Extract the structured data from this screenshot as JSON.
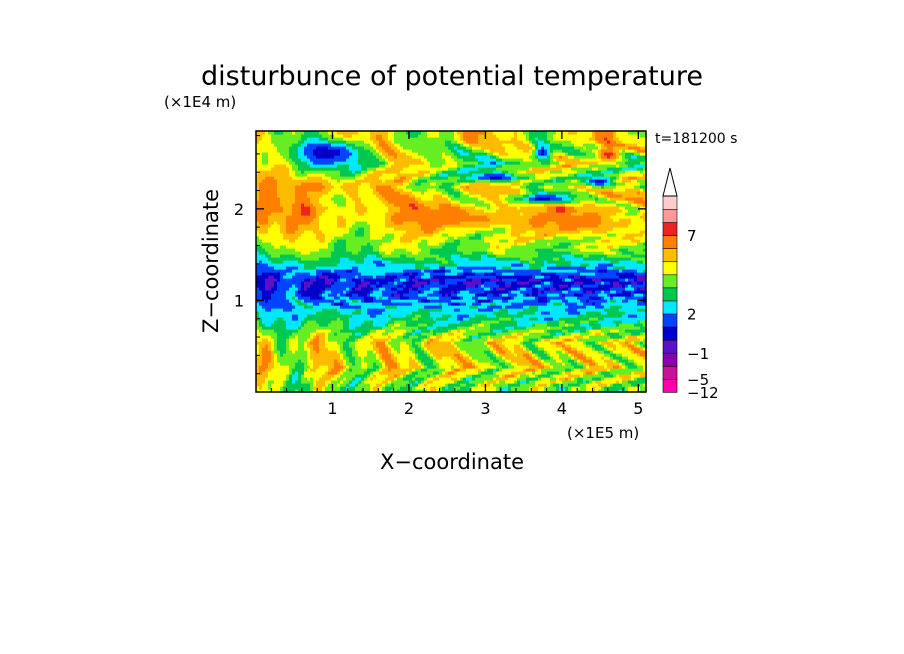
{
  "chart_data": {
    "type": "heatmap",
    "title": "disturbunce of potential temperature",
    "xlabel": "X−coordinate",
    "ylabel": "Z−coordinate",
    "x_unit": "(×1E5 m)",
    "y_unit": "(×1E4 m)",
    "time_label": "t=181200 s",
    "xlim": [
      0,
      5.1
    ],
    "ylim": [
      0,
      2.85
    ],
    "x_ticks": [
      "1",
      "2",
      "3",
      "4",
      "5"
    ],
    "y_ticks": [
      "1",
      "2"
    ],
    "colorbar_labels": [
      "7",
      "2",
      "−1",
      "−5",
      "−12"
    ],
    "colorbar_colors": [
      "#ff00aa",
      "#cc1199",
      "#8a00b0",
      "#5a10c8",
      "#0000cc",
      "#0044ff",
      "#00e8ff",
      "#00c850",
      "#66ee22",
      "#ffff00",
      "#ffbb00",
      "#ff8000",
      "#ee2222",
      "#ff9999",
      "#ffcccc"
    ],
    "bands": [
      {
        "z": 0.05,
        "level": 8,
        "amp": 1.2,
        "freq": 9.0
      },
      {
        "z": 0.28,
        "level": 9,
        "amp": 1.4,
        "freq": 7.0
      },
      {
        "z": 0.55,
        "level": 9,
        "amp": 1.3,
        "freq": 8.0
      },
      {
        "z": 0.75,
        "level": 7,
        "amp": 0.8,
        "freq": 6.0
      },
      {
        "z": 0.9,
        "level": 6,
        "amp": 0.6,
        "freq": 5.0
      },
      {
        "z": 1.05,
        "level": 5,
        "amp": 0.9,
        "freq": 11.0
      },
      {
        "z": 1.22,
        "level": 4,
        "amp": 0.9,
        "freq": 9.0
      },
      {
        "z": 1.38,
        "level": 6,
        "amp": 0.6,
        "freq": 4.0
      },
      {
        "z": 1.55,
        "level": 8,
        "amp": 0.7,
        "freq": 5.0
      },
      {
        "z": 1.75,
        "level": 9,
        "amp": 1.0,
        "freq": 4.0
      },
      {
        "z": 2.0,
        "level": 10,
        "amp": 1.2,
        "freq": 3.5
      },
      {
        "z": 2.25,
        "level": 9,
        "amp": 1.4,
        "freq": 4.5
      },
      {
        "z": 2.5,
        "level": 8,
        "amp": 1.5,
        "freq": 3.0
      },
      {
        "z": 2.75,
        "level": 9,
        "amp": 1.4,
        "freq": 4.0
      }
    ],
    "features": [
      {
        "x": 0.95,
        "z": 2.62,
        "rx": 0.45,
        "rz": 0.14,
        "level": 4
      },
      {
        "x": 3.15,
        "z": 2.35,
        "rx": 0.35,
        "rz": 0.05,
        "level": 4
      },
      {
        "x": 3.75,
        "z": 2.12,
        "rx": 0.4,
        "rz": 0.06,
        "level": 4
      },
      {
        "x": 4.5,
        "z": 2.3,
        "rx": 0.2,
        "rz": 0.06,
        "level": 4
      },
      {
        "x": 3.75,
        "z": 2.62,
        "rx": 0.12,
        "rz": 0.08,
        "level": 4
      },
      {
        "x": 4.6,
        "z": 2.6,
        "rx": 0.15,
        "rz": 0.1,
        "level": 12
      },
      {
        "x": 0.75,
        "z": 2.25,
        "rx": 0.4,
        "rz": 0.12,
        "level": 11
      },
      {
        "x": 2.6,
        "z": 1.9,
        "rx": 0.9,
        "rz": 0.1,
        "level": 11
      },
      {
        "x": 4.3,
        "z": 1.85,
        "rx": 0.5,
        "rz": 0.12,
        "level": 11
      },
      {
        "x": 0.1,
        "z": 1.95,
        "rx": 0.12,
        "rz": 0.25,
        "level": 11
      },
      {
        "x": 1.55,
        "z": 1.32,
        "rx": 0.25,
        "rz": 0.08,
        "level": 6
      }
    ]
  }
}
